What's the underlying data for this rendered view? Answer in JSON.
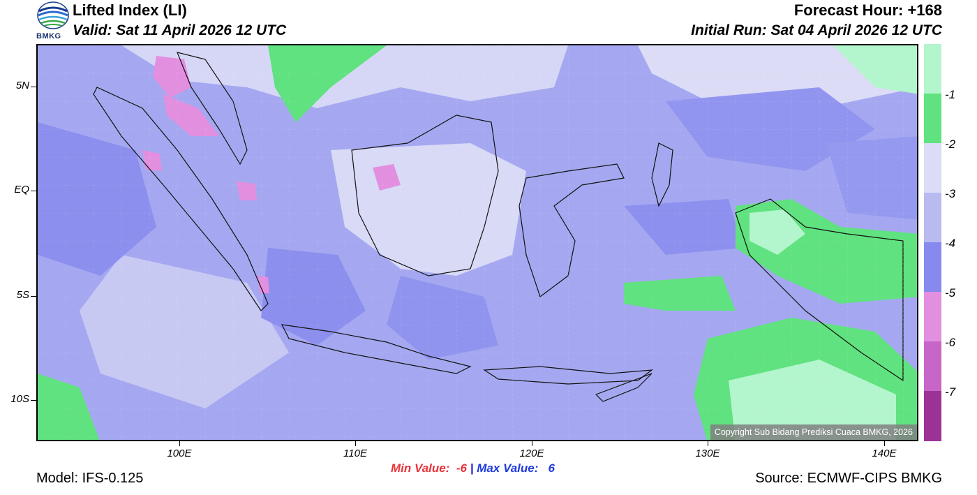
{
  "header": {
    "title": "Lifted Index (LI)",
    "valid": "Valid: Sat 11 April 2026 12 UTC",
    "forecast_hour": "Forecast Hour: +168",
    "initial_run": "Initial Run: Sat 04 April 2026 12 UTC",
    "logo_text": "BMKG"
  },
  "map": {
    "lat_labels": [
      "5N",
      "EQ",
      "5S",
      "10S"
    ],
    "lon_labels": [
      "100E",
      "110E",
      "120E",
      "130E",
      "140E"
    ],
    "copyright": "Copyright Sub Bidang Prediksi Cuaca BMKG, 2026"
  },
  "colorbar": {
    "labels": [
      "-1",
      "-2",
      "-3",
      "-4",
      "-5",
      "-6",
      "-7"
    ],
    "colors": [
      "#b3f5cc",
      "#5fe27f",
      "#dcdcf6",
      "#b9baf0",
      "#8689ee",
      "#e28fe0",
      "#c765c9",
      "#9b3397"
    ]
  },
  "footer": {
    "min_label": "Min Value:  -6",
    "separator": "|",
    "max_label": "Max Value:   6",
    "model": "Model: IFS-0.125",
    "source": "Source: ECMWF-CIPS BMKG"
  },
  "icons": [
    "bmkg-logo-icon"
  ]
}
